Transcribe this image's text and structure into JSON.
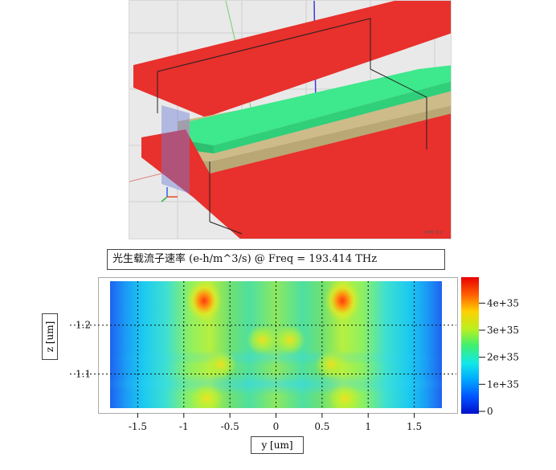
{
  "viewport": {
    "corner_text": "HMT: 0.0"
  },
  "chart_data": {
    "type": "heatmap",
    "title": "光生载流子速率 (e-h/m^3/s)  @ Freq = 193.414 THz",
    "xlabel": "y [um]",
    "ylabel": "z [um]",
    "xlim": [
      -1.8,
      1.8
    ],
    "ylim": [
      1.03,
      1.29
    ],
    "x_ticks": [
      -1.5,
      -1,
      -0.5,
      0,
      0.5,
      1,
      1.5
    ],
    "x_tick_labels": [
      "-1.5",
      "-1",
      "-0.5",
      "0",
      "0.5",
      "1",
      "1.5"
    ],
    "y_ticks": [
      1.1,
      1.2
    ],
    "y_tick_labels": [
      "1.1",
      "1.2"
    ],
    "grid": "dotted",
    "colorbar": {
      "ticks": [
        0,
        1e+35,
        2e+35,
        3e+35,
        4e+35
      ],
      "tick_labels": [
        "0",
        "1e+35",
        "2e+35",
        "3e+35",
        "4e+35"
      ],
      "max": 4.9e+35,
      "colormap": "jet"
    },
    "hotspots": [
      {
        "y": -0.78,
        "z": 1.25,
        "value": 4.8e+35
      },
      {
        "y": 0.72,
        "z": 1.25,
        "value": 4.8e+35
      },
      {
        "y": -0.6,
        "z": 1.12,
        "value": 3.4e+35
      },
      {
        "y": 0.6,
        "z": 1.12,
        "value": 3.4e+35
      },
      {
        "y": -0.15,
        "z": 1.17,
        "value": 2.8e+35
      },
      {
        "y": 0.15,
        "z": 1.17,
        "value": 2.8e+35
      },
      {
        "y": -0.75,
        "z": 1.05,
        "value": 3.6e+35
      },
      {
        "y": 0.75,
        "z": 1.05,
        "value": 3.6e+35
      }
    ]
  },
  "colors": {
    "red_plate": "#e8302c",
    "green_ridge": "#3ee88c",
    "tan_slab": "#cdbb8a",
    "background_3d": "#e9e9e9"
  }
}
